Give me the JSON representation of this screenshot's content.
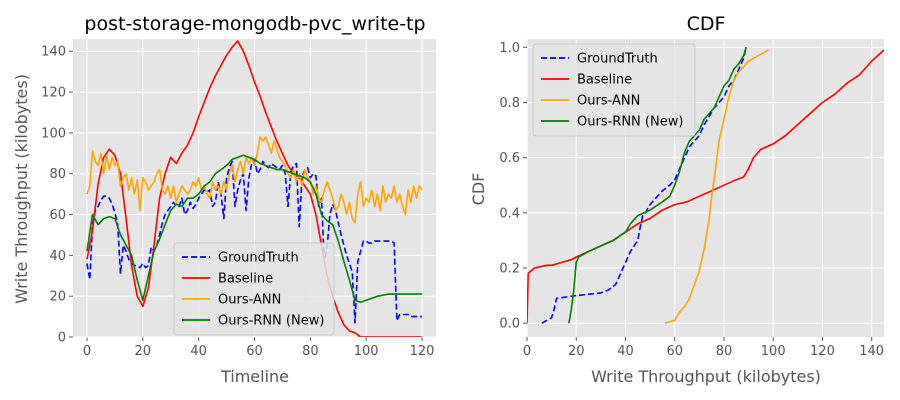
{
  "chart_data": [
    {
      "type": "line",
      "title": "post-storage-mongodb-pvc_write-tp",
      "xlabel": "Timeline",
      "ylabel": "Write Throughput (kilobytes)",
      "xlim": [
        -5,
        125
      ],
      "ylim": [
        0,
        146
      ],
      "xticks": [
        0,
        20,
        40,
        60,
        80,
        100,
        120
      ],
      "yticks": [
        0,
        20,
        40,
        60,
        80,
        100,
        120,
        140
      ],
      "grid": true,
      "legend": "lower-center",
      "series": [
        {
          "name": "GroundTruth",
          "color": "#0000ff",
          "dash": true,
          "x": [
            0,
            1,
            2,
            3,
            4,
            5,
            6,
            7,
            8,
            9,
            10,
            11,
            12,
            13,
            14,
            15,
            16,
            17,
            18,
            19,
            20,
            21,
            22,
            23,
            24,
            25,
            26,
            27,
            28,
            29,
            30,
            31,
            32,
            33,
            34,
            35,
            36,
            37,
            38,
            39,
            40,
            41,
            42,
            43,
            44,
            45,
            46,
            47,
            48,
            49,
            50,
            51,
            52,
            53,
            54,
            55,
            56,
            57,
            58,
            59,
            60,
            61,
            62,
            63,
            64,
            65,
            66,
            67,
            68,
            69,
            70,
            71,
            72,
            73,
            74,
            75,
            76,
            77,
            78,
            79,
            80,
            81,
            82,
            83,
            84,
            85,
            86,
            87,
            88,
            89,
            90,
            91,
            92,
            93,
            94,
            95,
            96,
            97,
            98,
            99,
            100,
            101,
            102,
            103,
            104,
            105,
            106,
            107,
            108,
            109,
            110,
            111,
            112,
            113,
            114,
            115,
            116,
            117,
            118,
            119,
            120
          ],
          "values": [
            36,
            28,
            55,
            62,
            64,
            67,
            69,
            69,
            68,
            65,
            61,
            55,
            31,
            45,
            42,
            38,
            36,
            35,
            35,
            34,
            36,
            34,
            35,
            44,
            42,
            45,
            50,
            56,
            60,
            62,
            64,
            66,
            64,
            64,
            68,
            60,
            62,
            66,
            63,
            65,
            68,
            70,
            72,
            71,
            72,
            64,
            66,
            76,
            70,
            58,
            78,
            83,
            86,
            64,
            72,
            77,
            80,
            62,
            78,
            85,
            87,
            80,
            82,
            86,
            84,
            83,
            85,
            84,
            83,
            82,
            84,
            80,
            64,
            81,
            84,
            85,
            54,
            78,
            82,
            83,
            78,
            80,
            79,
            64,
            68,
            37,
            44,
            60,
            65,
            62,
            56,
            50,
            45,
            40,
            36,
            32,
            7,
            37,
            42,
            47,
            47,
            46,
            46,
            47,
            47,
            47,
            47,
            47,
            47,
            47,
            46,
            8,
            11,
            11,
            11,
            11,
            10,
            10,
            10,
            10,
            10
          ]
        },
        {
          "name": "Baseline",
          "color": "#ff0000",
          "dash": false,
          "x": [
            0,
            2,
            4,
            6,
            8,
            10,
            12,
            14,
            16,
            18,
            20,
            22,
            24,
            26,
            28,
            30,
            32,
            34,
            36,
            38,
            40,
            42,
            44,
            46,
            48,
            50,
            52,
            54,
            56,
            58,
            60,
            62,
            64,
            66,
            68,
            70,
            72,
            74,
            76,
            78,
            80,
            82,
            84,
            86,
            88,
            90,
            92,
            94,
            96,
            98,
            100,
            104,
            108,
            112,
            116,
            120
          ],
          "values": [
            38,
            52,
            75,
            88,
            92,
            89,
            80,
            58,
            35,
            20,
            15,
            24,
            45,
            68,
            80,
            88,
            85,
            90,
            94,
            100,
            108,
            115,
            122,
            128,
            133,
            138,
            142,
            145,
            140,
            133,
            125,
            118,
            110,
            103,
            96,
            90,
            84,
            80,
            78,
            74,
            70,
            60,
            45,
            30,
            20,
            12,
            6,
            3,
            2,
            0,
            0,
            0,
            0,
            0,
            0,
            0
          ]
        },
        {
          "name": "Ours-ANN",
          "color": "#ffa500",
          "dash": false,
          "x": [
            0,
            1,
            2,
            3,
            4,
            5,
            6,
            7,
            8,
            9,
            10,
            11,
            12,
            13,
            14,
            15,
            16,
            17,
            18,
            19,
            20,
            21,
            22,
            23,
            24,
            25,
            26,
            27,
            28,
            29,
            30,
            31,
            32,
            33,
            34,
            35,
            36,
            37,
            38,
            39,
            40,
            41,
            42,
            43,
            44,
            45,
            46,
            47,
            48,
            49,
            50,
            51,
            52,
            53,
            54,
            55,
            56,
            57,
            58,
            59,
            60,
            61,
            62,
            63,
            64,
            65,
            66,
            67,
            68,
            69,
            70,
            71,
            72,
            73,
            74,
            75,
            76,
            77,
            78,
            79,
            80,
            81,
            82,
            83,
            84,
            85,
            86,
            87,
            88,
            89,
            90,
            91,
            92,
            93,
            94,
            95,
            96,
            97,
            98,
            99,
            100,
            101,
            102,
            103,
            104,
            105,
            106,
            107,
            108,
            109,
            110,
            111,
            112,
            113,
            114,
            115,
            116,
            117,
            118,
            119,
            120
          ],
          "values": [
            70,
            74,
            91,
            86,
            84,
            90,
            80,
            89,
            82,
            88,
            84,
            86,
            74,
            78,
            80,
            72,
            78,
            70,
            77,
            62,
            78,
            76,
            72,
            74,
            76,
            80,
            82,
            72,
            70,
            74,
            68,
            74,
            66,
            70,
            74,
            72,
            70,
            72,
            76,
            74,
            78,
            72,
            74,
            70,
            68,
            76,
            72,
            74,
            70,
            76,
            72,
            80,
            84,
            76,
            82,
            86,
            80,
            88,
            85,
            88,
            84,
            90,
            98,
            96,
            98,
            94,
            90,
            96,
            92,
            88,
            86,
            84,
            80,
            78,
            82,
            76,
            80,
            74,
            82,
            78,
            76,
            70,
            74,
            68,
            66,
            72,
            76,
            72,
            68,
            62,
            64,
            70,
            66,
            60,
            66,
            58,
            56,
            70,
            76,
            64,
            68,
            66,
            72,
            64,
            70,
            62,
            74,
            66,
            70,
            68,
            74,
            66,
            70,
            64,
            60,
            72,
            66,
            74,
            68,
            74,
            72
          ]
        },
        {
          "name": "Ours-RNN (New)",
          "color": "#008000",
          "dash": false,
          "x": [
            0,
            2,
            4,
            6,
            8,
            10,
            12,
            14,
            16,
            18,
            20,
            22,
            24,
            26,
            28,
            30,
            32,
            34,
            36,
            38,
            40,
            42,
            44,
            46,
            48,
            50,
            52,
            54,
            56,
            58,
            60,
            62,
            64,
            66,
            68,
            70,
            72,
            74,
            76,
            78,
            80,
            82,
            84,
            86,
            88,
            90,
            92,
            94,
            96,
            98,
            100,
            104,
            108,
            112,
            116,
            120
          ],
          "values": [
            42,
            60,
            55,
            58,
            59,
            58,
            50,
            45,
            40,
            28,
            18,
            30,
            42,
            48,
            55,
            62,
            65,
            64,
            68,
            68,
            70,
            74,
            76,
            80,
            82,
            84,
            87,
            88,
            89,
            88,
            87,
            85,
            84,
            83,
            82,
            82,
            81,
            80,
            79,
            78,
            76,
            70,
            60,
            57,
            55,
            47,
            37,
            28,
            18,
            17,
            18,
            20,
            21,
            21,
            21,
            21
          ]
        }
      ]
    },
    {
      "type": "line",
      "title": "CDF",
      "xlabel": "Write Throughput (kilobytes)",
      "ylabel": "CDF",
      "xlim": [
        0,
        145
      ],
      "ylim": [
        -0.05,
        1.03
      ],
      "xticks": [
        0,
        20,
        40,
        60,
        80,
        100,
        120,
        140
      ],
      "yticks": [
        0.0,
        0.2,
        0.4,
        0.6,
        0.8,
        1.0
      ],
      "grid": true,
      "legend": "top-left",
      "series": [
        {
          "name": "GroundTruth",
          "color": "#0000ff",
          "dash": true,
          "x": [
            6,
            8,
            10,
            11,
            12,
            20,
            30,
            33,
            36,
            38,
            40,
            42,
            45,
            46,
            47,
            48,
            50,
            52,
            55,
            58,
            60,
            62,
            64,
            66,
            68,
            70,
            72,
            74,
            76,
            78,
            80,
            82,
            84,
            86,
            88,
            89
          ],
          "values": [
            0,
            0.01,
            0.02,
            0.05,
            0.09,
            0.1,
            0.11,
            0.12,
            0.14,
            0.18,
            0.22,
            0.26,
            0.3,
            0.35,
            0.39,
            0.4,
            0.43,
            0.45,
            0.48,
            0.5,
            0.52,
            0.56,
            0.6,
            0.64,
            0.66,
            0.68,
            0.72,
            0.75,
            0.78,
            0.8,
            0.82,
            0.86,
            0.88,
            0.92,
            0.96,
            1.0
          ]
        },
        {
          "name": "Baseline",
          "color": "#ff0000",
          "dash": false,
          "x": [
            0,
            0.5,
            3,
            8,
            10,
            14,
            18,
            20,
            25,
            30,
            35,
            40,
            45,
            50,
            55,
            60,
            65,
            70,
            75,
            80,
            85,
            88,
            90,
            92,
            95,
            100,
            105,
            110,
            115,
            120,
            125,
            130,
            135,
            140,
            145
          ],
          "values": [
            0,
            0.18,
            0.2,
            0.21,
            0.21,
            0.22,
            0.23,
            0.24,
            0.26,
            0.28,
            0.3,
            0.33,
            0.36,
            0.38,
            0.41,
            0.43,
            0.44,
            0.46,
            0.48,
            0.5,
            0.52,
            0.53,
            0.56,
            0.6,
            0.63,
            0.65,
            0.68,
            0.72,
            0.76,
            0.8,
            0.83,
            0.87,
            0.9,
            0.95,
            0.99
          ]
        },
        {
          "name": "Ours-ANN",
          "color": "#ffa500",
          "dash": false,
          "x": [
            56,
            58,
            60,
            62,
            64,
            66,
            68,
            70,
            72,
            74,
            75,
            76,
            78,
            80,
            82,
            84,
            86,
            88,
            90,
            92,
            94,
            96,
            98
          ],
          "values": [
            0,
            0.005,
            0.01,
            0.04,
            0.06,
            0.09,
            0.14,
            0.19,
            0.27,
            0.38,
            0.46,
            0.52,
            0.66,
            0.74,
            0.82,
            0.88,
            0.91,
            0.93,
            0.95,
            0.96,
            0.97,
            0.98,
            0.99
          ]
        },
        {
          "name": "Ours-RNN (New)",
          "color": "#008000",
          "dash": false,
          "x": [
            17,
            18,
            19,
            20,
            21,
            25,
            30,
            35,
            40,
            42,
            45,
            50,
            55,
            58,
            60,
            62,
            64,
            66,
            68,
            70,
            72,
            74,
            76,
            78,
            80,
            82,
            84,
            86,
            88,
            89
          ],
          "values": [
            0,
            0.05,
            0.12,
            0.22,
            0.24,
            0.26,
            0.28,
            0.3,
            0.33,
            0.36,
            0.39,
            0.41,
            0.44,
            0.46,
            0.5,
            0.55,
            0.62,
            0.66,
            0.68,
            0.7,
            0.74,
            0.76,
            0.78,
            0.82,
            0.86,
            0.88,
            0.92,
            0.94,
            0.97,
            1.0
          ]
        }
      ]
    }
  ]
}
